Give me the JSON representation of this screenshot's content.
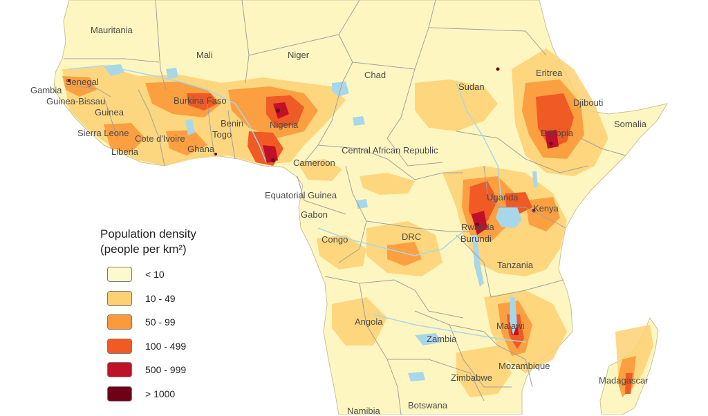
{
  "map": {
    "colors": {
      "ocean": "#ffffff",
      "land": "#fef6c0",
      "water": "#a9d7ea",
      "border": "#a0a0a0"
    },
    "labels": {
      "mauritania": "Mauritania",
      "mali": "Mali",
      "niger": "Niger",
      "chad": "Chad",
      "sudan": "Sudan",
      "eritrea": "Eritrea",
      "djibouti": "Djibouti",
      "somalia": "Somalia",
      "ethiopia": "Ethiopia",
      "gambia": "Gambia",
      "senegal": "Senegal",
      "guinea_bissau": "Guinea-Bissau",
      "guinea": "Guinea",
      "sierra_leone": "Sierra Leone",
      "liberia": "Liberia",
      "cote_divoire": "Cote d'Ivoire",
      "burkina_faso": "Burkina Faso",
      "ghana": "Ghana",
      "togo": "Togo",
      "benin": "Benin",
      "nigeria": "Nigeria",
      "cameroon": "Cameroon",
      "central_african_republic": "Central African Republic",
      "equatorial_guinea": "Equatorial Guinea",
      "gabon": "Gabon",
      "congo": "Congo",
      "drc": "DRC",
      "uganda": "Uganda",
      "kenya": "Kenya",
      "rwanda": "Rwanda",
      "burundi": "Burundi",
      "tanzania": "Tanzania",
      "angola": "Angola",
      "zambia": "Zambia",
      "malawi": "Malawi",
      "mozambique": "Mozambique",
      "zimbabwe": "Zimbabwe",
      "madagascar": "Madagascar",
      "namibia": "Namibia",
      "botswana": "Botswana"
    }
  },
  "legend": {
    "title_line1": "Population density",
    "title_line2": "(people per km²)",
    "items": [
      {
        "label": "< 10",
        "color": "#fdf9cf"
      },
      {
        "label": "10 - 49",
        "color": "#fdd173"
      },
      {
        "label": "50 - 99",
        "color": "#fb9a3a"
      },
      {
        "label": "100 - 499",
        "color": "#f05a24"
      },
      {
        "label": "500 - 999",
        "color": "#c0102a"
      },
      {
        "label": "> 1000",
        "color": "#6e0018"
      }
    ]
  }
}
